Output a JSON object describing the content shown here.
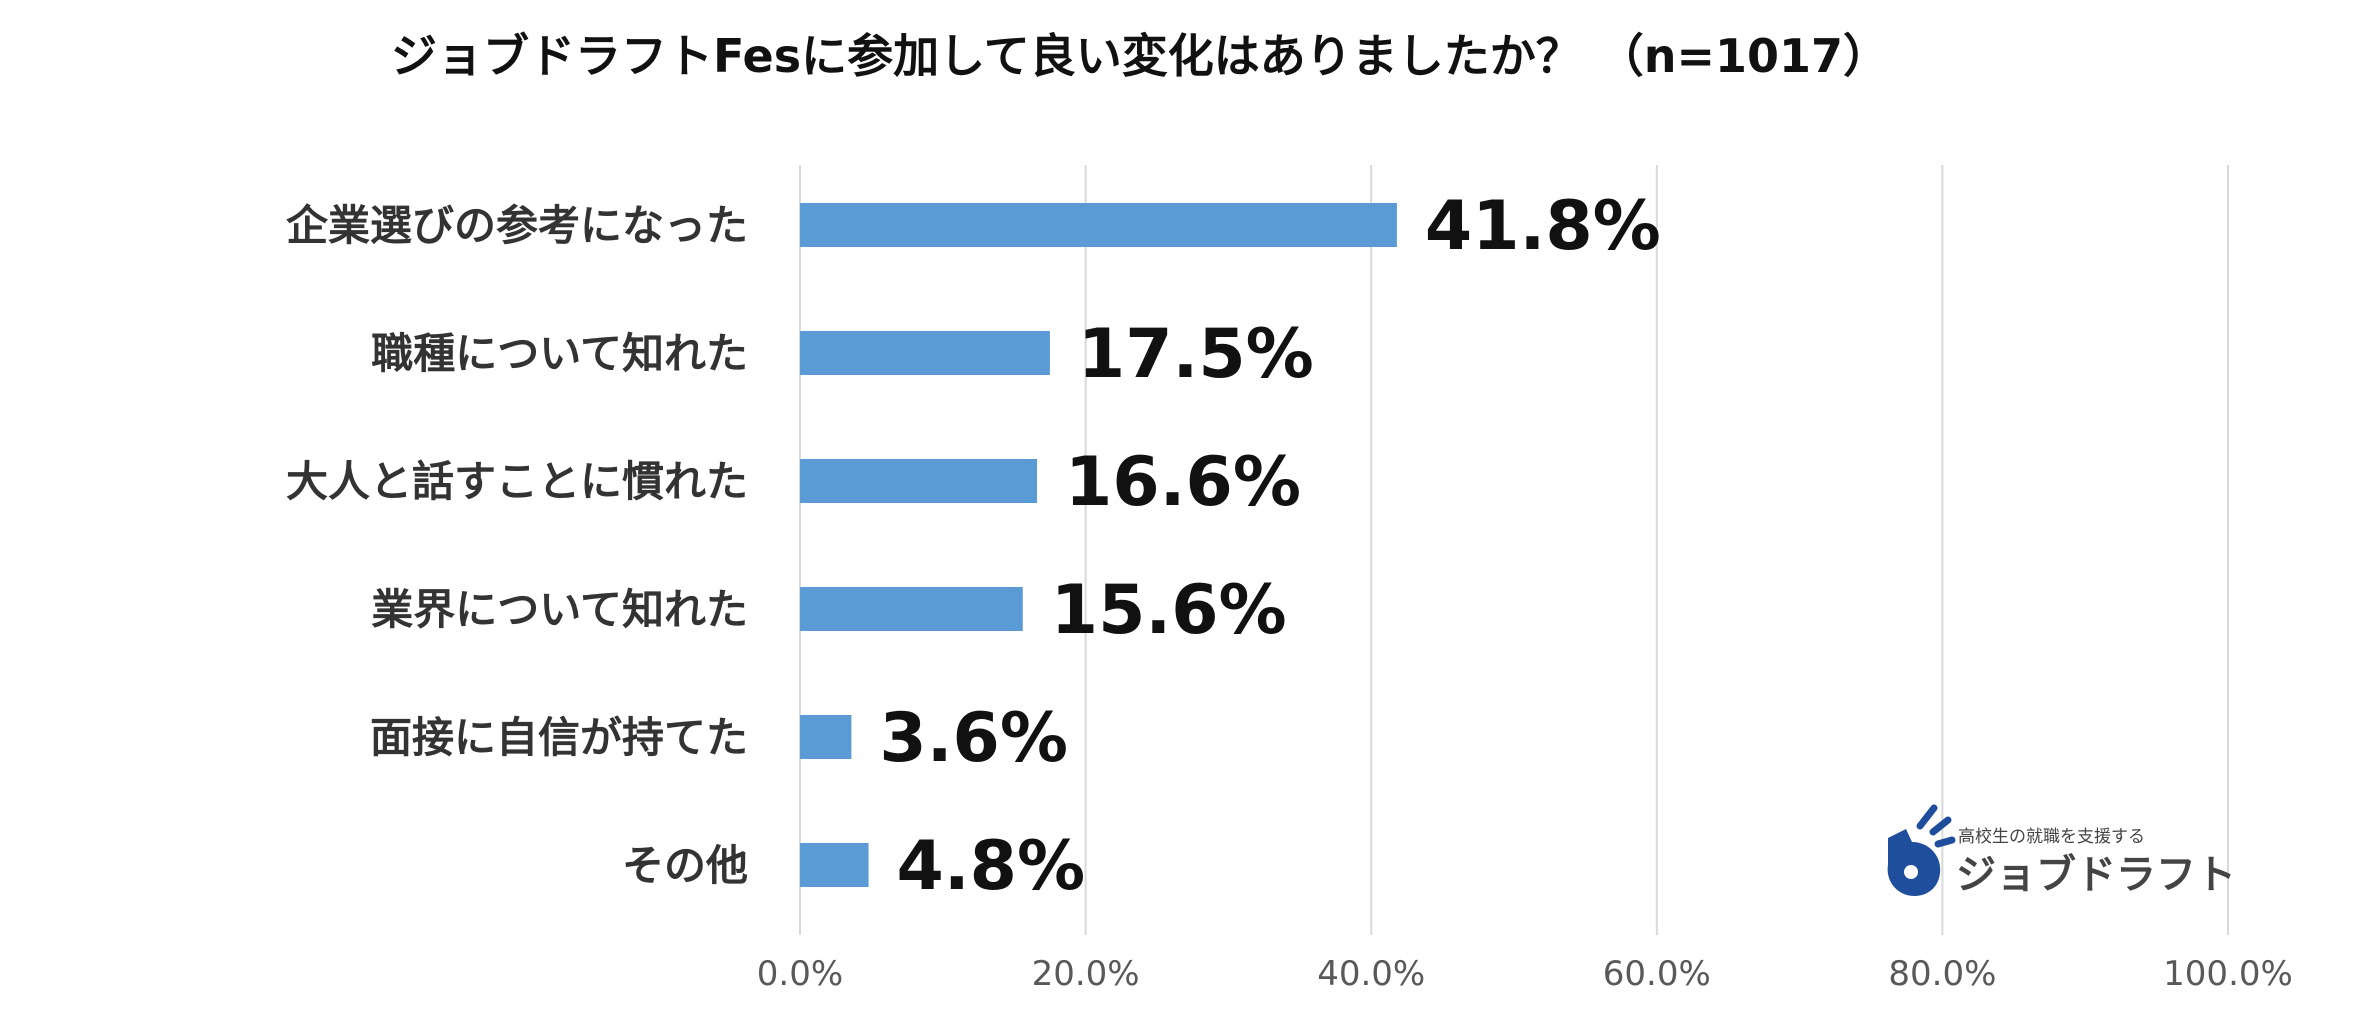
{
  "chart_data": {
    "type": "bar",
    "orientation": "horizontal",
    "title": "ジョブドラフトFesに参加して良い変化はありましたか？ （n=1017）",
    "categories": [
      "企業選びの参考になった",
      "職種について知れた",
      "大人と話すことに慣れた",
      "業界について知れた",
      "面接に自信が持てた",
      "その他"
    ],
    "values": [
      41.8,
      17.5,
      16.6,
      15.6,
      3.6,
      4.8
    ],
    "data_labels": [
      "41.8%",
      "17.5%",
      "16.6%",
      "15.6%",
      "3.6%",
      "4.8%"
    ],
    "xlim": [
      0,
      100
    ],
    "x_ticks": [
      0,
      20,
      40,
      60,
      80,
      100
    ],
    "x_tick_labels": [
      "0.0%",
      "20.0%",
      "40.0%",
      "60.0%",
      "80.0%",
      "100.0%"
    ],
    "xlabel": "",
    "ylabel": "",
    "grid": "vertical",
    "legend": "none",
    "bar_color": "#5b9bd5",
    "grid_color": "#d9d9d9"
  },
  "logo": {
    "tagline": "高校生の就職を支援する",
    "name": "ジョブドラフト",
    "color": "#1f4e9c",
    "text_color": "#444444"
  }
}
